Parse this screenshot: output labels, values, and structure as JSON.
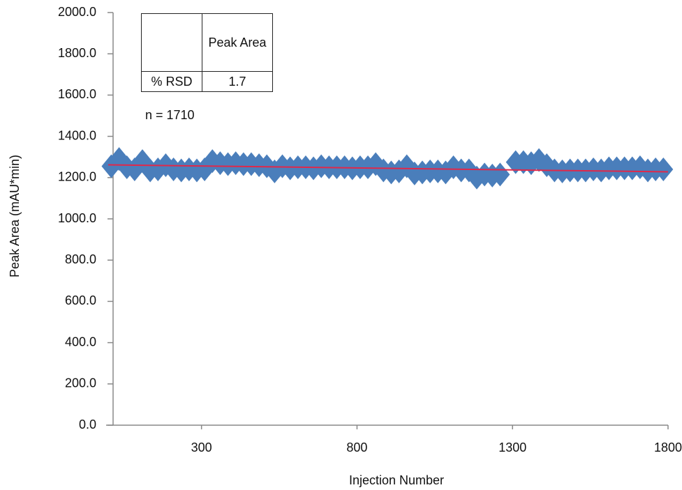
{
  "chart_data": {
    "type": "scatter",
    "x_label": "Injection Number",
    "y_label": "Peak Area (mAU*min)",
    "annotation": "n = 1710",
    "table": {
      "column_header": "Peak Area",
      "row_header": "% RSD",
      "value": 1.7
    },
    "xlim": [
      0,
      1800
    ],
    "xticks": [
      300,
      800,
      1300,
      1800
    ],
    "ylim": [
      0,
      2000
    ],
    "yticks": [
      {
        "value": 0,
        "label": "0.0"
      },
      {
        "value": 200,
        "label": "200.0"
      },
      {
        "value": 400,
        "label": "400.0"
      },
      {
        "value": 600,
        "label": "600.0"
      },
      {
        "value": 800,
        "label": "800.0"
      },
      {
        "value": 1000,
        "label": "1000.0"
      },
      {
        "value": 1200,
        "label": "1200.0"
      },
      {
        "value": 1400,
        "label": "1400.0"
      },
      {
        "value": 1600,
        "label": "1600.0"
      },
      {
        "value": 1800,
        "label": "1800.0"
      },
      {
        "value": 2000,
        "label": "2000.0"
      }
    ],
    "color": "#4a7ebb",
    "x": [
      10,
      35,
      60,
      85,
      110,
      135,
      160,
      185,
      210,
      235,
      260,
      285,
      310,
      335,
      360,
      385,
      410,
      435,
      460,
      485,
      510,
      535,
      560,
      585,
      610,
      635,
      660,
      685,
      710,
      735,
      760,
      785,
      810,
      835,
      860,
      885,
      910,
      935,
      960,
      985,
      1010,
      1035,
      1060,
      1085,
      1110,
      1135,
      1160,
      1185,
      1210,
      1235,
      1260,
      1310,
      1335,
      1360,
      1385,
      1410,
      1435,
      1460,
      1485,
      1510,
      1535,
      1560,
      1585,
      1610,
      1635,
      1660,
      1685,
      1710,
      1735,
      1760,
      1785
    ],
    "values": [
      1255,
      1290,
      1250,
      1240,
      1280,
      1235,
      1240,
      1260,
      1240,
      1235,
      1240,
      1235,
      1240,
      1280,
      1270,
      1265,
      1270,
      1265,
      1265,
      1260,
      1255,
      1230,
      1255,
      1245,
      1250,
      1250,
      1245,
      1255,
      1250,
      1250,
      1250,
      1245,
      1250,
      1250,
      1265,
      1235,
      1225,
      1230,
      1255,
      1220,
      1225,
      1230,
      1230,
      1225,
      1250,
      1235,
      1235,
      1200,
      1215,
      1210,
      1215,
      1275,
      1275,
      1270,
      1285,
      1260,
      1235,
      1230,
      1235,
      1235,
      1235,
      1240,
      1235,
      1245,
      1245,
      1245,
      1245,
      1250,
      1235,
      1240,
      1240
    ],
    "trendline": {
      "x": [
        0,
        1800
      ],
      "values": [
        1262,
        1228
      ],
      "color": "#e0284a"
    }
  }
}
